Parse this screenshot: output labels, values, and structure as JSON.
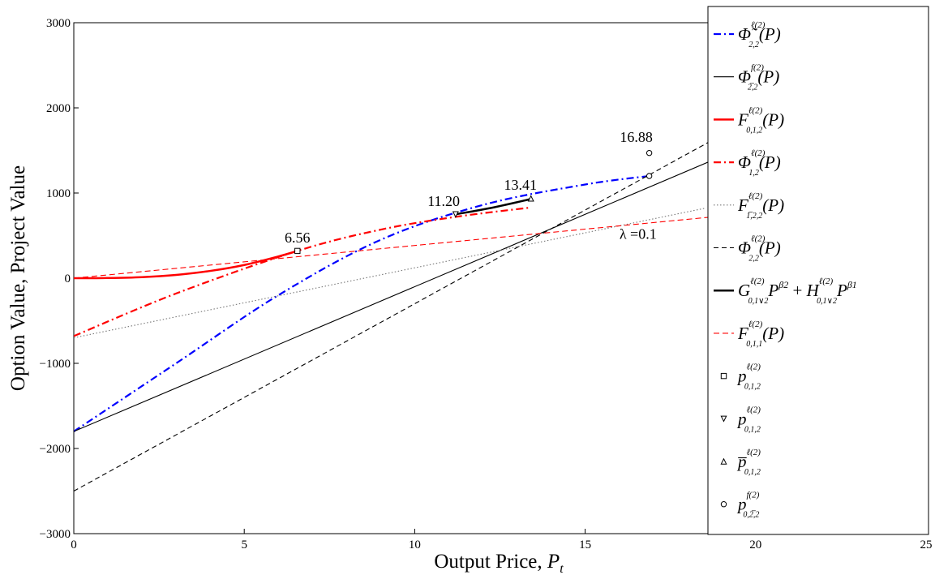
{
  "chart_data": {
    "type": "line",
    "xlabel": "Output Price, P_t",
    "xlabel_main": "Output Price, ",
    "xlabel_var": "P",
    "xlabel_sub": "t",
    "ylabel": "Option Value, Project Value",
    "xlim": [
      0,
      25
    ],
    "ylim": [
      -3000,
      3000
    ],
    "xticks": [
      "0",
      "5",
      "10",
      "15",
      "20",
      "25"
    ],
    "yticks": [
      "−3000",
      "−2000",
      "−1000",
      "0",
      "1000",
      "2000",
      "3000"
    ],
    "grid": false,
    "legend_position": "right",
    "series": [
      {
        "name": "Φ̃^{ℓ(2)}_{2,2}(P)",
        "legend": "Φ̃",
        "color": "#0000ff",
        "style": "dashdot",
        "x": [
          0,
          3,
          6,
          9,
          12,
          15,
          16.88
        ],
        "y": [
          -1800,
          -1000,
          -200,
          450,
          860,
          1100,
          1200
        ]
      },
      {
        "name": "Φ^{f(2)}_{2,2}(P)",
        "legend": "Φ",
        "color": "#000000",
        "style": "solid-thin",
        "x": [
          0,
          25
        ],
        "y": [
          -1800,
          2450
        ]
      },
      {
        "name": "F^{ℓ(2)}_{0,1,2}(P)",
        "legend": "F",
        "color": "#ff0000",
        "style": "solid-thick",
        "x": [
          0,
          1,
          2,
          3,
          4,
          5,
          6,
          6.56
        ],
        "y": [
          0,
          2,
          12,
          38,
          85,
          155,
          255,
          320
        ]
      },
      {
        "name": "Φ^{ℓ(2)}_{1,2}(P)",
        "legend": "Φ",
        "color": "#ff0000",
        "style": "dashdot",
        "x": [
          0,
          3,
          6.56,
          9,
          11.2,
          13.41
        ],
        "y": [
          -680,
          -180,
          320,
          570,
          720,
          830
        ]
      },
      {
        "name": "F^{ℓ(2)}_{1,2,2}(P)",
        "legend": "F",
        "color": "#777777",
        "style": "dotted",
        "x": [
          0,
          18.5
        ],
        "y": [
          -700,
          820
        ]
      },
      {
        "name": "Φ^{ℓ(2)}_{2,2}(P)",
        "legend": "Φ",
        "color": "#000000",
        "style": "dashed",
        "x": [
          0,
          25
        ],
        "y": [
          -2500,
          3000
        ]
      },
      {
        "name": "G P^β2 + H P^β1",
        "legend": "G",
        "color": "#000000",
        "style": "solid-thick",
        "x": [
          11.2,
          12.3,
          13.41
        ],
        "y": [
          750,
          830,
          930
        ]
      },
      {
        "name": "F^{ℓ(2)}_{0,1,1}(P)",
        "legend": "F",
        "color": "#ff0000",
        "style": "dashed-thin",
        "x": [
          0,
          25
        ],
        "y": [
          0,
          960
        ]
      }
    ],
    "points": [
      {
        "x": 6.56,
        "y": 320,
        "marker": "square"
      },
      {
        "x": 11.2,
        "y": 750,
        "marker": "triangle-down"
      },
      {
        "x": 13.41,
        "y": 935,
        "marker": "triangle-up"
      },
      {
        "x": 16.88,
        "y": 1200,
        "marker": "circle"
      },
      {
        "x": 16.88,
        "y": 1470,
        "marker": "circle"
      }
    ],
    "annotations": [
      {
        "text": "6.56",
        "x": 6.56,
        "y": 420
      },
      {
        "text": "11.20",
        "x": 10.85,
        "y": 850
      },
      {
        "text": "13.41",
        "x": 13.1,
        "y": 1040
      },
      {
        "text": "16.88",
        "x": 16.5,
        "y": 1600
      },
      {
        "text": "λ =0.1",
        "x": 16.55,
        "y": 460
      }
    ],
    "legend_entries": [
      {
        "main": "Φ̃",
        "sup": "ℓ(2)",
        "sub": "2,2",
        "arg": "(P)"
      },
      {
        "main": "Φ",
        "sup": "f(2)",
        "sub": "2̅,2",
        "arg": "(P)"
      },
      {
        "main": "F",
        "sup": "ℓ(2)",
        "sub": "0,1,2",
        "arg": "(P)"
      },
      {
        "main": "Φ",
        "sup": "ℓ(2)",
        "sub": "1,2",
        "arg": "(P)"
      },
      {
        "main": "F",
        "sup": "ℓ(2)",
        "sub": "1̅,2,2",
        "arg": "(P)"
      },
      {
        "main": "Φ",
        "sup": "ℓ(2)",
        "sub": "2,2",
        "arg": "(P)"
      },
      {
        "main": "G",
        "sup": "ℓ(2)",
        "sub": "0,1∨2",
        "arg": "P",
        "arg_sup": "β2",
        "tail": " + ",
        "main2": "H",
        "sup2": "ℓ(2)",
        "sub2": "0,1∨2",
        "arg2": "P",
        "arg2_sup": "β1"
      },
      {
        "main": "F",
        "sup": "ℓ(2)",
        "sub": "0,1,1",
        "arg": "(P)"
      },
      {
        "main": "p",
        "sup": "ℓ(2)",
        "sub": "0,1,2",
        "arg": ""
      },
      {
        "main": "p",
        "sup": "ℓ(2)",
        "sub": "0,1,2",
        "arg": ""
      },
      {
        "main": "p̅",
        "sup": "ℓ(2)",
        "sub": "0,1,2",
        "arg": ""
      },
      {
        "main": "p",
        "sup": "f(2)",
        "sub": "0,2̅,2",
        "arg": ""
      }
    ]
  }
}
